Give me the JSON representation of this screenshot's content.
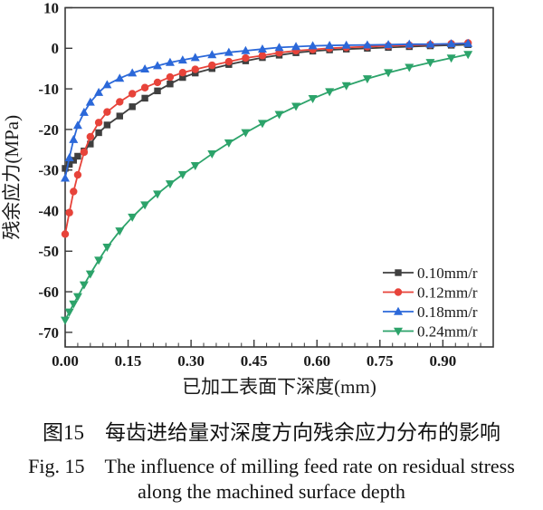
{
  "figure": {
    "caption_zh": "图15　每齿进给量对深度方向残余应力分布的影响",
    "caption_en_line1": "Fig. 15　The influence of milling feed rate on residual stress",
    "caption_en_line2": "along the machined surface depth"
  },
  "colors": {
    "axis": "#3a3a3a",
    "text": "#1a1a1a",
    "series_black": "#3f3f3f",
    "series_red": "#e7433a",
    "series_blue": "#2b68d9",
    "series_green": "#2ca36a"
  },
  "chart_data": {
    "type": "line",
    "title": "",
    "xlabel": "已加工表面下深度(mm)",
    "ylabel": "残余应力(MPa)",
    "xlim": [
      0,
      1.02
    ],
    "ylim": [
      -73.6,
      10
    ],
    "grid": false,
    "legend_position": "lower right",
    "x_ticks": {
      "values": [
        0,
        0.15,
        0.3,
        0.45,
        0.6,
        0.75,
        0.9
      ],
      "labels": [
        "0.00",
        "0.15",
        "0.30",
        "0.45",
        "0.60",
        "0.75",
        "0.90"
      ],
      "minor_step": 0.03
    },
    "y_ticks": {
      "values": [
        10,
        0,
        -10,
        -20,
        -30,
        -40,
        -50,
        -60,
        -70
      ],
      "labels": [
        "10",
        "0",
        "-10",
        "-20",
        "-30",
        "-40",
        "-50",
        "-60",
        "-70"
      ]
    },
    "x": [
      0,
      0.01,
      0.02,
      0.03,
      0.045,
      0.06,
      0.08,
      0.1,
      0.13,
      0.16,
      0.19,
      0.22,
      0.25,
      0.28,
      0.31,
      0.35,
      0.39,
      0.43,
      0.47,
      0.51,
      0.55,
      0.59,
      0.63,
      0.67,
      0.72,
      0.77,
      0.82,
      0.87,
      0.92,
      0.96
    ],
    "series": [
      {
        "name": "0.10mm/r",
        "marker": "square",
        "color": "#3f3f3f",
        "values": [
          -29.6,
          -28.6,
          -27.6,
          -26.6,
          -25.3,
          -23.6,
          -20.8,
          -18.9,
          -16.7,
          -14.4,
          -12.3,
          -10.5,
          -8.8,
          -7.2,
          -6.1,
          -5.0,
          -4.0,
          -3.1,
          -2.3,
          -1.7,
          -1.1,
          -0.7,
          -0.4,
          -0.2,
          0.0,
          0.2,
          0.4,
          0.6,
          0.75,
          0.9
        ]
      },
      {
        "name": "0.12mm/r",
        "marker": "circle",
        "color": "#e7433a",
        "values": [
          -45.8,
          -40.5,
          -35.3,
          -31.2,
          -25.6,
          -21.8,
          -18.3,
          -15.7,
          -13.2,
          -11.2,
          -9.7,
          -8.4,
          -7.1,
          -6.0,
          -5.2,
          -4.2,
          -3.3,
          -2.4,
          -1.8,
          -1.1,
          -0.6,
          -0.3,
          0.0,
          0.2,
          0.4,
          0.6,
          0.75,
          0.9,
          1.1,
          1.3
        ]
      },
      {
        "name": "0.18mm/r",
        "marker": "triangle-up",
        "color": "#2b68d9",
        "values": [
          -32.0,
          -27.0,
          -22.5,
          -19.0,
          -15.8,
          -13.3,
          -10.9,
          -9.0,
          -7.4,
          -6.1,
          -5.1,
          -4.3,
          -3.5,
          -2.9,
          -2.3,
          -1.6,
          -1.0,
          -0.6,
          -0.2,
          0.2,
          0.4,
          0.6,
          0.7,
          0.75,
          0.8,
          0.9,
          1.0,
          1.0,
          1.1,
          1.2
        ]
      },
      {
        "name": "0.24mm/r",
        "marker": "triangle-down",
        "color": "#2ca36a",
        "values": [
          -67.0,
          -65.0,
          -63.0,
          -61.2,
          -58.3,
          -55.6,
          -52.2,
          -49.0,
          -45.0,
          -41.6,
          -38.6,
          -35.9,
          -33.4,
          -31.1,
          -28.9,
          -26.0,
          -23.3,
          -20.8,
          -18.5,
          -16.3,
          -14.3,
          -12.4,
          -10.7,
          -9.2,
          -7.5,
          -6.0,
          -4.7,
          -3.5,
          -2.4,
          -1.5
        ]
      }
    ]
  }
}
